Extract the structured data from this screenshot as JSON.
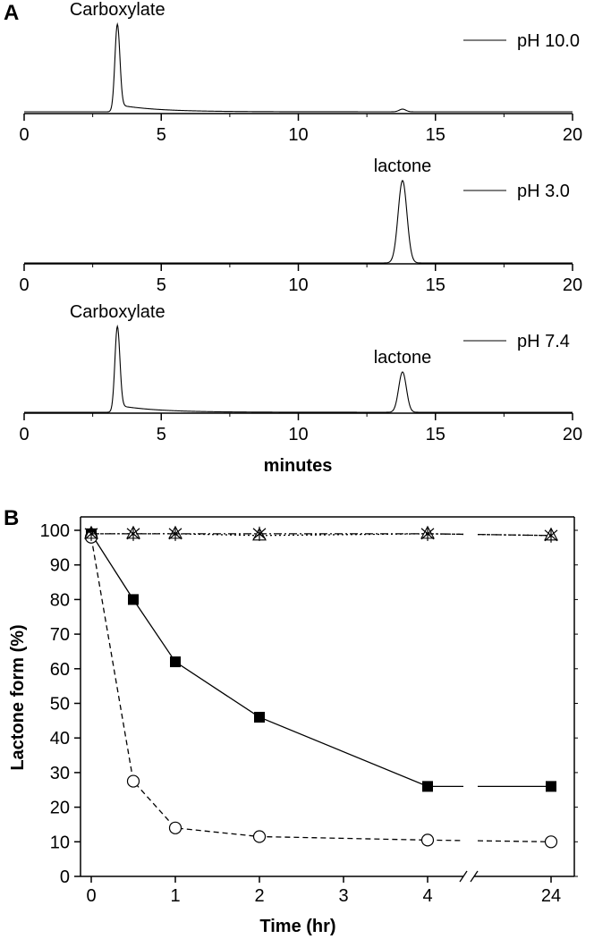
{
  "panelA": {
    "label": "A",
    "xlabel": "minutes",
    "xlim": [
      0,
      20
    ],
    "xticks": [
      0,
      5,
      10,
      15,
      20
    ],
    "chromatograms": [
      {
        "legend": "pH 10.0",
        "peaks": [
          {
            "label": "Carboxylate",
            "time": 3.4,
            "height": 1.0,
            "width": 0.09,
            "tail": 0.08,
            "tailDecay": 1.4
          },
          {
            "label": "",
            "time": 13.8,
            "height": 0.03,
            "width": 0.12,
            "tail": 0,
            "tailDecay": 1
          }
        ]
      },
      {
        "legend": "pH 3.0",
        "peaks": [
          {
            "label": "lactone",
            "time": 13.8,
            "height": 0.96,
            "width": 0.16,
            "tail": 0,
            "tailDecay": 1
          }
        ]
      },
      {
        "legend": "pH 7.4",
        "peaks": [
          {
            "label": "Carboxylate",
            "time": 3.4,
            "height": 1.0,
            "width": 0.09,
            "tail": 0.08,
            "tailDecay": 1.4
          },
          {
            "label": "lactone",
            "time": 13.8,
            "height": 0.47,
            "width": 0.14,
            "tail": 0,
            "tailDecay": 1
          }
        ]
      }
    ]
  },
  "panelB": {
    "label": "B",
    "xlabel": "Time (hr)",
    "ylabel": "Lactone form (%)",
    "ylim": [
      0,
      100
    ],
    "yticks": [
      0,
      10,
      20,
      30,
      40,
      50,
      60,
      70,
      80,
      90,
      100
    ],
    "xticks": [
      "0",
      "1",
      "2",
      "3",
      "4",
      "24"
    ],
    "axis_break": "between 4 and 24"
  },
  "chart_data": [
    {
      "type": "line",
      "title": "",
      "xlabel": "minutes",
      "ylabel": "",
      "xlim": [
        0,
        20
      ],
      "series": [
        {
          "name": "pH 10.0",
          "peaks_min": [
            3.4,
            13.8
          ],
          "relative_heights": [
            1.0,
            0.03
          ]
        },
        {
          "name": "pH 3.0",
          "peaks_min": [
            13.8
          ],
          "relative_heights": [
            0.96
          ]
        },
        {
          "name": "pH 7.4",
          "peaks_min": [
            3.4,
            13.8
          ],
          "relative_heights": [
            1.0,
            0.47
          ]
        }
      ],
      "annotations": [
        "Carboxylate",
        "lactone",
        "lactone",
        "Carboxylate"
      ]
    },
    {
      "type": "line",
      "title": "",
      "xlabel": "Time (hr)",
      "ylabel": "Lactone form (%)",
      "ylim": [
        0,
        100
      ],
      "x": [
        0,
        0.5,
        1,
        2,
        4,
        24
      ],
      "series": [
        {
          "marker": "filled-square",
          "line": "solid",
          "values": [
            99,
            80,
            62,
            46,
            26,
            26
          ]
        },
        {
          "marker": "open-circle",
          "line": "dashed",
          "values": [
            98,
            27.5,
            14,
            11.5,
            10.5,
            10
          ]
        },
        {
          "marker": "star",
          "line": "dash-dot",
          "values": [
            99,
            99,
            99,
            99,
            99,
            98.5
          ]
        },
        {
          "marker": "open-triangle",
          "line": "dotted",
          "values": [
            99,
            99,
            99,
            98.5,
            99,
            98.5
          ]
        }
      ],
      "grid": false,
      "legend": "none"
    }
  ]
}
